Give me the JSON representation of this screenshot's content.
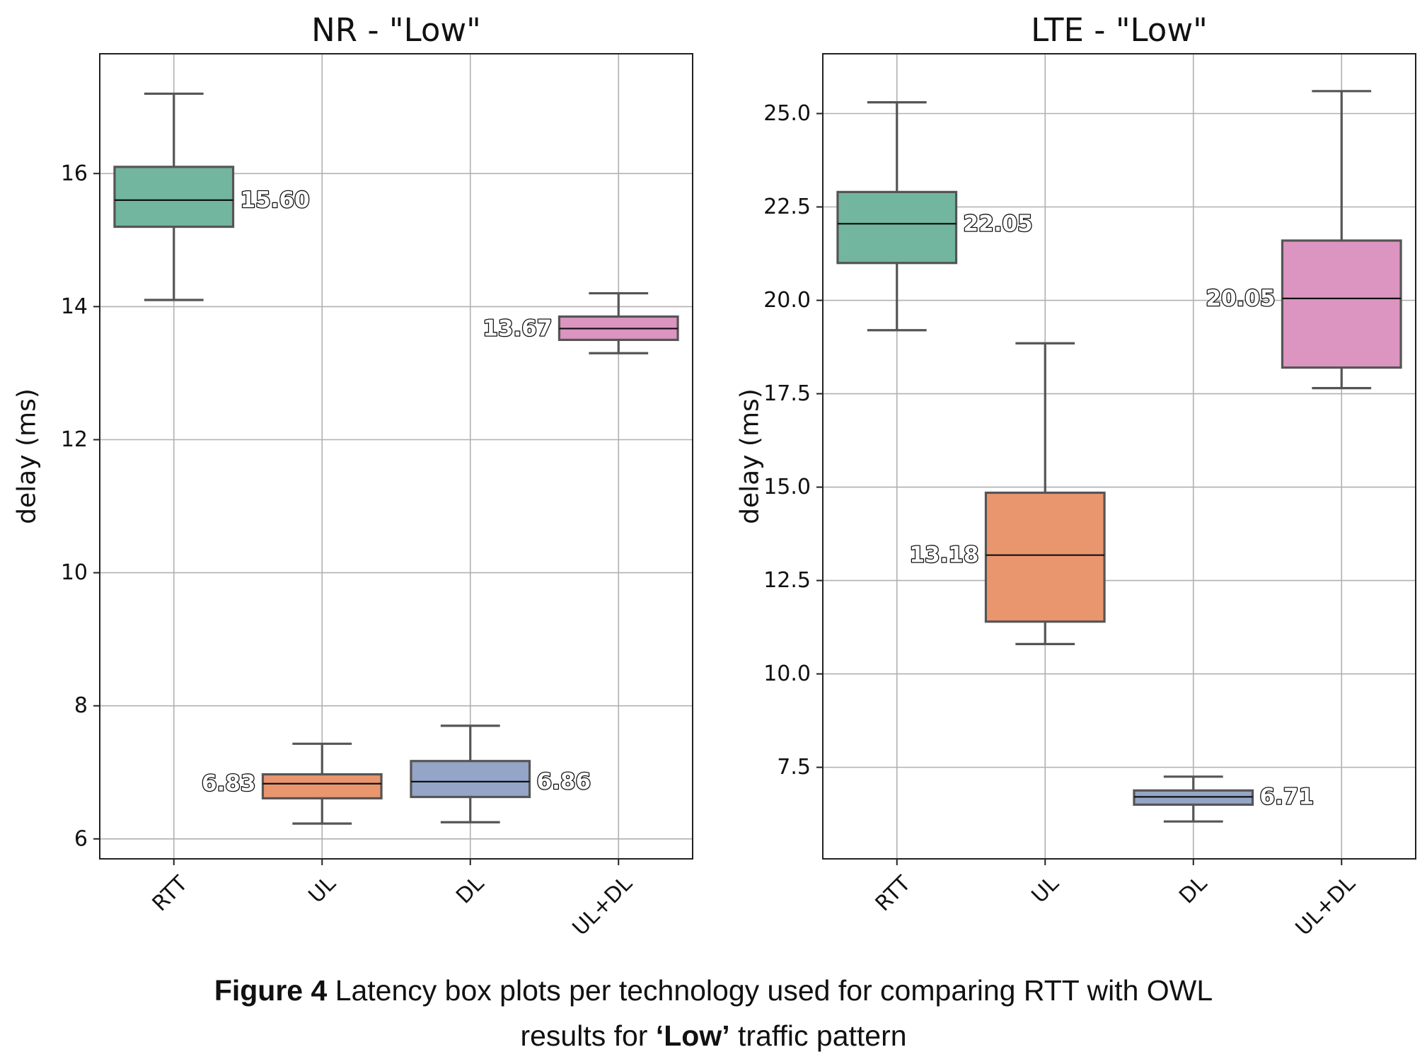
{
  "chart_data": [
    {
      "type": "box",
      "title": "NR - \"Low\"",
      "ylabel": "delay (ms)",
      "xlabel": "",
      "categories": [
        "RTT",
        "UL",
        "DL",
        "UL+DL"
      ],
      "ylim": [
        5.7,
        17.8
      ],
      "yticks": [
        6,
        8,
        10,
        12,
        14,
        16
      ],
      "ytick_labels": [
        "6",
        "8",
        "10",
        "12",
        "14",
        "16"
      ],
      "grid": true,
      "boxes": [
        {
          "category": "RTT",
          "whisker_low": 14.1,
          "q1": 15.2,
          "median": 15.6,
          "q3": 16.1,
          "whisker_high": 17.2,
          "label": "15.60",
          "label_side": "right",
          "color": "#72b6a0"
        },
        {
          "category": "UL",
          "whisker_low": 6.23,
          "q1": 6.61,
          "median": 6.83,
          "q3": 6.97,
          "whisker_high": 7.43,
          "label": "6.83",
          "label_side": "left",
          "color": "#e9966f"
        },
        {
          "category": "DL",
          "whisker_low": 6.25,
          "q1": 6.63,
          "median": 6.86,
          "q3": 7.17,
          "whisker_high": 7.7,
          "label": "6.86",
          "label_side": "right",
          "color": "#95a5c7"
        },
        {
          "category": "UL+DL",
          "whisker_low": 13.3,
          "q1": 13.5,
          "median": 13.67,
          "q3": 13.85,
          "whisker_high": 14.2,
          "label": "13.67",
          "label_side": "left",
          "color": "#dc95c0"
        }
      ]
    },
    {
      "type": "box",
      "title": "LTE - \"Low\"",
      "ylabel": "delay (ms)",
      "xlabel": "",
      "categories": [
        "RTT",
        "UL",
        "DL",
        "UL+DL"
      ],
      "ylim": [
        5.05,
        26.6
      ],
      "yticks": [
        7.5,
        10.0,
        12.5,
        15.0,
        17.5,
        20.0,
        22.5,
        25.0
      ],
      "ytick_labels": [
        "7.5",
        "10.0",
        "12.5",
        "15.0",
        "17.5",
        "20.0",
        "22.5",
        "25.0"
      ],
      "grid": true,
      "boxes": [
        {
          "category": "RTT",
          "whisker_low": 19.2,
          "q1": 21.0,
          "median": 22.05,
          "q3": 22.9,
          "whisker_high": 25.3,
          "label": "22.05",
          "label_side": "right",
          "color": "#72b6a0"
        },
        {
          "category": "UL",
          "whisker_low": 10.8,
          "q1": 11.4,
          "median": 13.18,
          "q3": 14.85,
          "whisker_high": 18.85,
          "label": "13.18",
          "label_side": "left",
          "color": "#e9966f"
        },
        {
          "category": "DL",
          "whisker_low": 6.05,
          "q1": 6.5,
          "median": 6.71,
          "q3": 6.88,
          "whisker_high": 7.25,
          "label": "6.71",
          "label_side": "right",
          "color": "#95a5c7"
        },
        {
          "category": "UL+DL",
          "whisker_low": 17.65,
          "q1": 18.2,
          "median": 20.05,
          "q3": 21.6,
          "whisker_high": 25.6,
          "label": "20.05",
          "label_side": "left",
          "color": "#dc95c0"
        }
      ]
    }
  ],
  "caption": {
    "bold_prefix": "Figure 4",
    "line1_rest": " Latency box plots per technology used for comparing RTT with OWL",
    "line2_start": "results for ",
    "line2_bold": "‘Low’",
    "line2_end": " traffic pattern"
  }
}
